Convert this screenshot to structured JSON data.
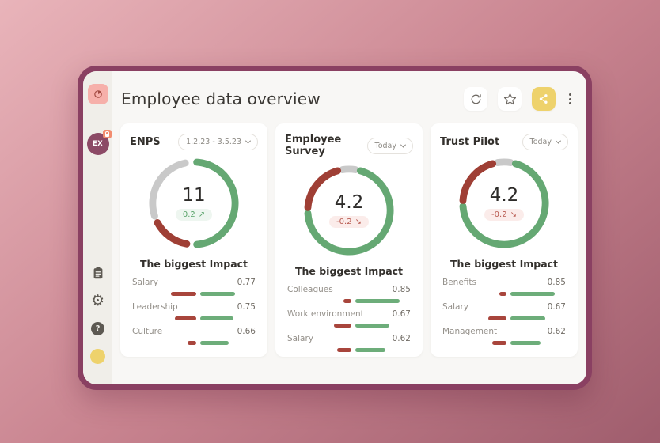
{
  "theme": {
    "background_from": "#e9b4ba",
    "background_mid": "#c8838f",
    "background_to": "#9f5d6d",
    "window_border": "#8a4062",
    "sidebar_bg": "#f0eee9",
    "main_bg": "#f8f7f5",
    "card_bg": "#ffffff",
    "green": "#65a873",
    "red": "#9f3f35",
    "gray": "#c9c9c9",
    "bar_green": "#6dad7a",
    "bar_red": "#a8453c",
    "badge_up_bg": "#eef6f0",
    "badge_up_text": "#57a268",
    "badge_down_bg": "#fbecea",
    "badge_down_text": "#b85a50",
    "accent_yellow": "#eed26c",
    "app_icon_bg": "#f6b0aa",
    "app_icon_glyph": "#a24a41",
    "avatar_bg": "#8c4a66",
    "icon_gray": "#5d5952",
    "toolbar_icon": "#6e6963"
  },
  "sidebar": {
    "app_icon": "pie-chart-icon",
    "avatar": {
      "initials": "EX",
      "badge": "lock-icon"
    },
    "bottom_icons": [
      "notes-icon",
      "settings-gear-icon",
      "help-question-icon",
      "profile-dot"
    ]
  },
  "header": {
    "title": "Employee data overview"
  },
  "toolbar": {
    "icons": [
      "refresh-icon",
      "star-icon",
      "share-icon",
      "kebab-menu-icon"
    ]
  },
  "cards": [
    {
      "title": "ENPS",
      "period": "1.2.23 - 3.5.23",
      "value": "11",
      "delta": "0.2",
      "trend": "up",
      "trend_arrow": "↗",
      "impact_title": "The biggest Impact",
      "donut": [
        {
          "color": "#65a873",
          "start": 4,
          "end": 176
        },
        {
          "color": "#9f3f35",
          "start": 190,
          "end": 242
        },
        {
          "color": "#c9c9c9",
          "start": 252,
          "end": 348
        }
      ],
      "impacts": [
        {
          "label": "Salary",
          "value": "0.77",
          "red_w": 32,
          "green_w": 44
        },
        {
          "label": "Leadership",
          "value": "0.75",
          "red_w": 27,
          "green_w": 42
        },
        {
          "label": "Culture",
          "value": "0.66",
          "red_w": 11,
          "green_w": 36
        }
      ]
    },
    {
      "title": "Employee Survey",
      "period": "Today",
      "value": "4.2",
      "delta": "-0.2",
      "trend": "down",
      "trend_arrow": "↘",
      "impact_title": "The biggest Impact",
      "donut": [
        {
          "color": "#c9c9c9",
          "start": -9,
          "end": 9
        },
        {
          "color": "#65a873",
          "start": 16,
          "end": 266
        },
        {
          "color": "#9f3f35",
          "start": 274,
          "end": 344
        }
      ],
      "impacts": [
        {
          "label": "Colleagues",
          "value": "0.85",
          "red_w": 10,
          "green_w": 56
        },
        {
          "label": "Work environment",
          "value": "0.67",
          "red_w": 22,
          "green_w": 43
        },
        {
          "label": "Salary",
          "value": "0.62",
          "red_w": 18,
          "green_w": 38
        }
      ]
    },
    {
      "title": "Trust Pilot",
      "period": "Today",
      "value": "4.2",
      "delta": "-0.2",
      "trend": "down",
      "trend_arrow": "↘",
      "impact_title": "The biggest Impact",
      "donut": [
        {
          "color": "#c9c9c9",
          "start": -9,
          "end": 9
        },
        {
          "color": "#65a873",
          "start": 16,
          "end": 266
        },
        {
          "color": "#9f3f35",
          "start": 274,
          "end": 344
        }
      ],
      "impacts": [
        {
          "label": "Benefits",
          "value": "0.85",
          "red_w": 9,
          "green_w": 56
        },
        {
          "label": "Salary",
          "value": "0.67",
          "red_w": 23,
          "green_w": 44
        },
        {
          "label": "Management",
          "value": "0.62",
          "red_w": 18,
          "green_w": 38
        }
      ]
    }
  ]
}
